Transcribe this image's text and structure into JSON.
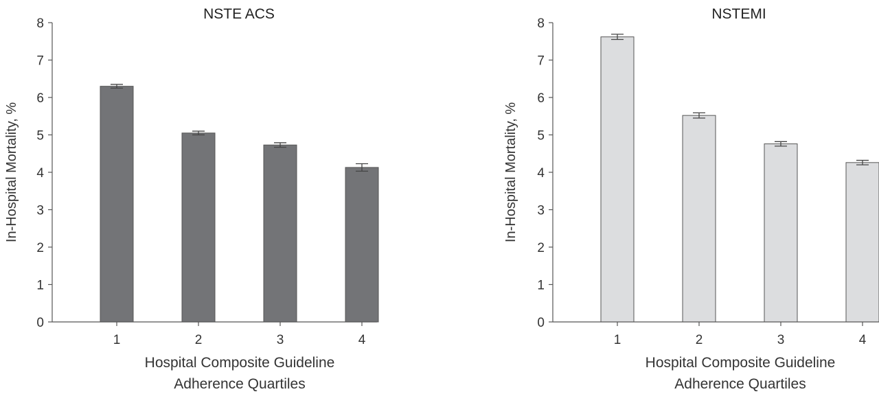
{
  "chart_data": [
    {
      "type": "bar",
      "title": "NSTE ACS",
      "xlabel_lines": [
        "Hospital Composite Guideline",
        "Adherence Quartiles"
      ],
      "ylabel": "In-Hospital Mortality, %",
      "categories": [
        "1",
        "2",
        "3",
        "4"
      ],
      "values": [
        6.3,
        5.05,
        4.73,
        4.13
      ],
      "errors": [
        0.05,
        0.05,
        0.06,
        0.1
      ],
      "ylim": [
        0,
        8
      ],
      "yticks": [
        "0",
        "1",
        "2",
        "3",
        "4",
        "5",
        "6",
        "7",
        "8"
      ],
      "bar_color": "#737477",
      "grid": false
    },
    {
      "type": "bar",
      "title": "NSTEMI",
      "xlabel_lines": [
        "Hospital Composite Guideline",
        "Adherence Quartiles"
      ],
      "ylabel": "In-Hospital Mortality, %",
      "categories": [
        "1",
        "2",
        "3",
        "4"
      ],
      "values": [
        7.62,
        5.52,
        4.76,
        4.26
      ],
      "errors": [
        0.07,
        0.07,
        0.06,
        0.06
      ],
      "ylim": [
        0,
        8
      ],
      "yticks": [
        "0",
        "1",
        "2",
        "3",
        "4",
        "5",
        "6",
        "7",
        "8"
      ],
      "bar_color": "#dcdddf",
      "grid": false
    }
  ]
}
